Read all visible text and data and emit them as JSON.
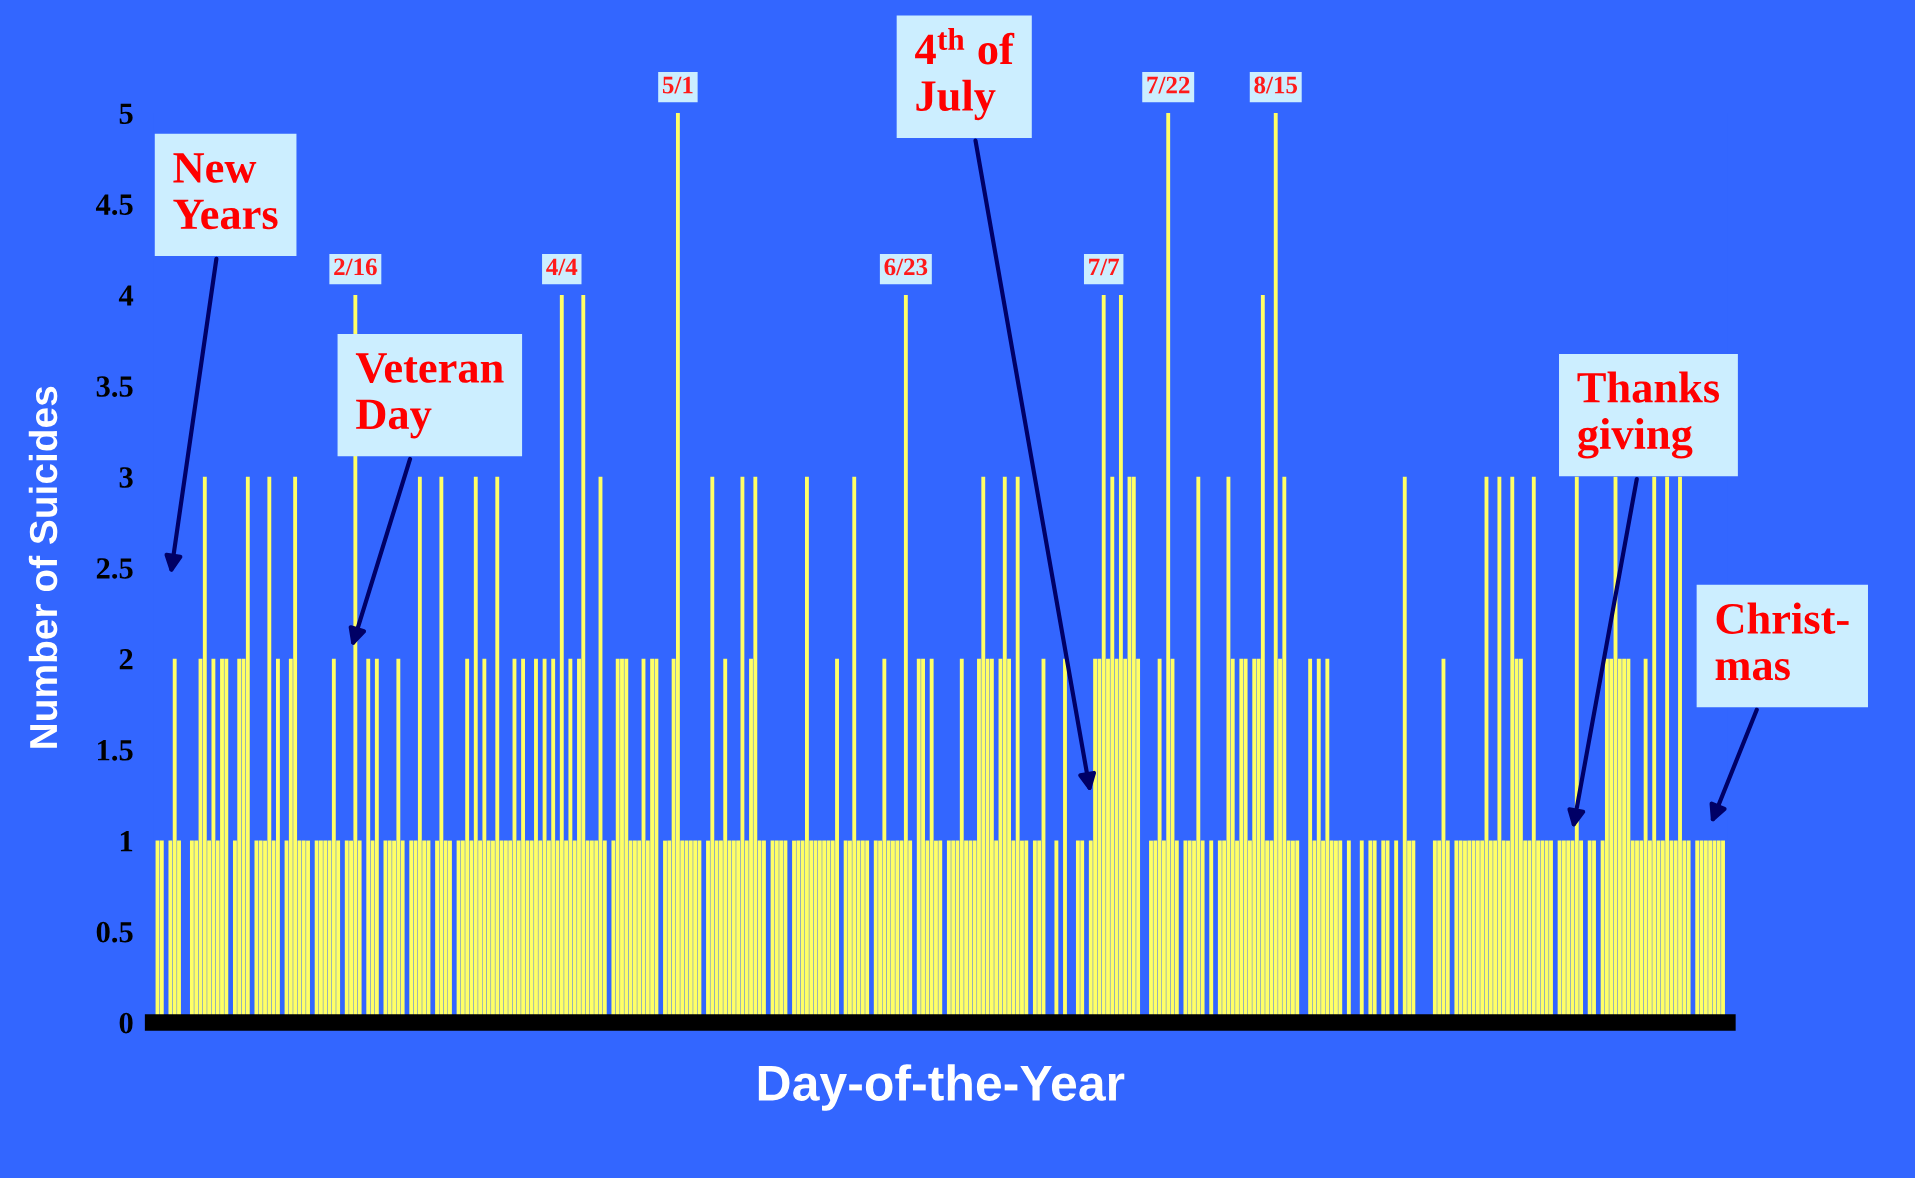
{
  "chart_data": {
    "type": "bar",
    "xlabel": "Day-of-the-Year",
    "ylabel": "Number of Suicides",
    "color": "#ffff66",
    "categories": [
      null,
      null,
      null,
      null,
      null,
      null,
      null,
      null,
      null,
      null,
      null,
      null,
      null,
      null,
      null,
      null,
      null,
      null,
      null,
      null,
      null,
      null,
      null,
      null,
      null,
      null,
      null,
      null,
      null,
      null,
      null,
      null,
      null,
      null,
      null,
      null,
      null,
      null,
      null,
      null,
      null,
      null,
      null,
      null,
      null,
      null,
      null,
      null,
      null,
      null,
      null,
      null,
      null,
      null,
      null,
      null,
      null,
      null,
      null,
      null,
      null,
      null,
      null,
      null,
      null,
      null,
      null,
      null,
      null,
      null,
      null,
      null,
      null,
      null,
      null,
      null,
      null,
      null,
      null,
      null,
      null,
      null,
      null,
      null,
      null,
      null,
      null,
      null,
      null,
      null,
      null,
      null,
      null,
      null,
      null,
      null,
      null,
      null,
      null,
      null,
      null,
      null,
      null,
      null,
      null,
      null,
      null,
      null,
      null,
      null,
      null,
      null,
      null,
      null,
      null,
      null,
      null,
      null,
      null,
      null,
      null,
      null,
      null,
      null,
      null,
      null,
      null,
      null,
      null,
      null,
      null,
      null,
      null,
      null,
      null,
      null,
      null,
      null,
      null,
      null,
      null,
      null,
      null,
      null,
      null,
      null,
      null,
      null,
      null,
      null,
      null,
      null,
      null,
      null,
      null,
      null,
      null,
      null,
      null,
      null,
      null,
      null,
      null,
      null,
      null,
      null,
      null,
      null,
      null,
      null,
      null,
      null,
      null,
      null,
      null,
      null,
      null,
      null,
      null,
      null,
      null,
      null,
      null,
      null,
      null,
      null,
      null,
      null,
      null,
      null,
      null,
      null,
      null,
      null,
      null,
      null,
      null,
      null,
      null,
      null,
      null,
      null,
      null,
      null,
      null,
      null,
      null,
      null,
      null,
      null,
      null,
      null,
      null,
      null,
      null,
      null,
      null,
      null,
      null,
      null,
      null,
      null,
      null,
      null,
      null,
      null,
      null,
      null,
      null,
      null,
      null,
      null,
      null,
      null,
      null,
      null,
      null,
      null,
      null,
      null,
      null,
      null,
      null,
      null,
      null,
      null,
      null,
      null,
      null,
      null,
      null,
      null,
      null,
      null,
      null,
      null,
      null,
      null,
      null,
      null,
      null,
      null,
      null,
      null,
      null,
      null,
      null,
      null,
      null,
      null,
      null,
      null,
      null,
      null,
      null,
      null,
      null,
      null,
      null,
      null,
      null,
      null,
      null,
      null,
      null,
      null,
      null,
      null,
      null,
      null,
      null,
      null,
      null,
      null,
      null,
      null,
      null,
      null,
      null,
      null,
      null,
      null,
      null,
      null,
      null,
      null,
      null,
      null,
      null,
      null,
      null,
      null,
      null,
      null,
      null,
      null,
      null,
      null,
      null,
      null,
      null,
      null,
      null,
      null,
      null,
      null,
      null,
      null,
      null,
      null,
      null,
      null,
      null,
      null,
      null,
      null,
      null,
      null,
      null,
      null,
      null,
      null,
      null,
      null,
      null,
      null,
      null,
      null,
      null,
      null,
      null,
      null,
      null,
      null,
      null,
      null,
      null,
      null,
      null,
      null,
      null,
      null,
      null,
      null,
      null
    ],
    "values": [
      1,
      1,
      0,
      1,
      2,
      1,
      0,
      0,
      1,
      1,
      2,
      3,
      1,
      2,
      1,
      2,
      2,
      0,
      1,
      2,
      2,
      3,
      0,
      1,
      1,
      1,
      3,
      1,
      2,
      0,
      1,
      2,
      3,
      1,
      1,
      1,
      0,
      1,
      1,
      1,
      1,
      2,
      1,
      0,
      1,
      1,
      4,
      1,
      0,
      2,
      1,
      2,
      0,
      1,
      1,
      1,
      2,
      1,
      0,
      1,
      1,
      3,
      1,
      1,
      0,
      1,
      3,
      1,
      1,
      0,
      1,
      1,
      2,
      1,
      3,
      1,
      2,
      1,
      1,
      3,
      1,
      1,
      1,
      2,
      1,
      2,
      1,
      1,
      2,
      1,
      2,
      1,
      2,
      1,
      4,
      1,
      2,
      1,
      2,
      4,
      1,
      1,
      1,
      3,
      1,
      0,
      1,
      2,
      2,
      2,
      1,
      1,
      1,
      2,
      1,
      2,
      2,
      0,
      1,
      1,
      2,
      5,
      1,
      1,
      1,
      1,
      1,
      0,
      1,
      3,
      1,
      1,
      2,
      1,
      1,
      1,
      3,
      1,
      2,
      3,
      1,
      1,
      0,
      1,
      1,
      1,
      1,
      0,
      1,
      1,
      1,
      3,
      1,
      1,
      1,
      1,
      1,
      1,
      2,
      0,
      1,
      1,
      3,
      1,
      1,
      1,
      0,
      1,
      1,
      2,
      1,
      1,
      1,
      1,
      4,
      1,
      0,
      2,
      2,
      1,
      2,
      1,
      1,
      0,
      1,
      1,
      1,
      2,
      1,
      1,
      1,
      2,
      3,
      2,
      2,
      1,
      2,
      3,
      2,
      1,
      3,
      1,
      1,
      0,
      1,
      1,
      2,
      0,
      0,
      1,
      0,
      2,
      0,
      0,
      1,
      1,
      0,
      1,
      2,
      2,
      4,
      2,
      3,
      2,
      4,
      2,
      3,
      3,
      2,
      0,
      0,
      1,
      1,
      2,
      1,
      5,
      2,
      1,
      0,
      1,
      1,
      1,
      3,
      1,
      0,
      1,
      0,
      1,
      1,
      3,
      2,
      1,
      2,
      2,
      1,
      2,
      2,
      4,
      1,
      1,
      5,
      2,
      3,
      1,
      1,
      1,
      0,
      0,
      2,
      1,
      2,
      1,
      2,
      1,
      1,
      1,
      0,
      1,
      0,
      0,
      1,
      0,
      1,
      1,
      0,
      1,
      1,
      0,
      1,
      0,
      3,
      1,
      1,
      0,
      0,
      0,
      0,
      1,
      1,
      2,
      1,
      0,
      1,
      1,
      1,
      1,
      1,
      1,
      1,
      3,
      1,
      1,
      3,
      1,
      1,
      3,
      2,
      2,
      1,
      1,
      3,
      1,
      1,
      1,
      1,
      0,
      1,
      1,
      1,
      1,
      3,
      1,
      0,
      1,
      1,
      0,
      1,
      2,
      2,
      3,
      2,
      2,
      2,
      1,
      1,
      1,
      2,
      1,
      3,
      1,
      1,
      3,
      1,
      1,
      3,
      1,
      1,
      0,
      1,
      1,
      1,
      1,
      1,
      1,
      1
    ],
    "ylim": [
      0,
      5
    ],
    "yticks": [
      0,
      {
        "value": 0.5,
        "label": "0.5"
      },
      1,
      {
        "value": 1.5,
        "label": "1.5"
      },
      2,
      {
        "value": 2.5,
        "label": "2.5"
      },
      3,
      {
        "value": 3.5,
        "label": "3.5"
      },
      4,
      {
        "value": 4.5,
        "label": "4.5"
      },
      5
    ],
    "tick_labels": "y",
    "grid": false,
    "legend": false,
    "annotations": [
      "2/16",
      "4/4",
      "5/1",
      "6/23",
      "7/7",
      "7/22",
      "8/15",
      "New\nYears",
      "Veteran\nDay",
      "4$^{th}$ of\nJuly",
      "Thanks\ngiving",
      "Christ-\nmas"
    ]
  }
}
